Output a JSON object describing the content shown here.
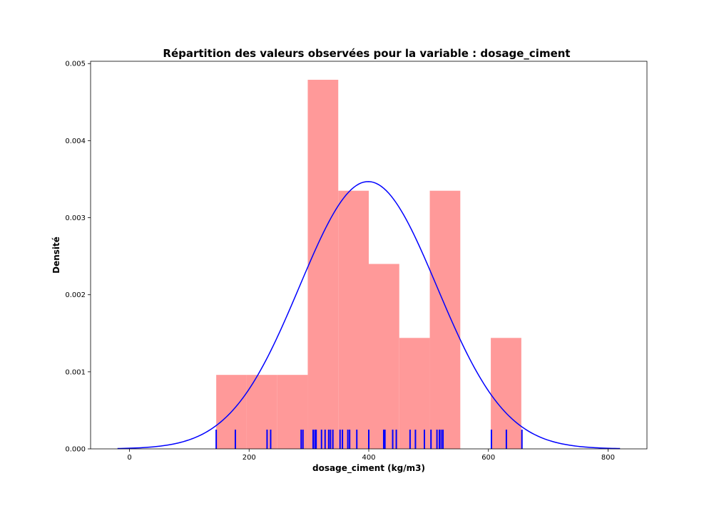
{
  "chart_data": {
    "type": "bar",
    "title": "Répartition des valeurs observées pour la variable : dosage_ciment",
    "xlabel": "dosage_ciment  (kg/m3)",
    "ylabel": "Densité",
    "xlim": [
      -65,
      865
    ],
    "ylim": [
      0,
      0.00503
    ],
    "x_ticks": [
      0,
      200,
      400,
      600,
      800
    ],
    "x_tick_labels": [
      "0",
      "200",
      "400",
      "600",
      "800"
    ],
    "y_ticks": [
      0,
      0.001,
      0.002,
      0.003,
      0.004,
      0.005
    ],
    "y_tick_labels": [
      "0.000",
      "0.001",
      "0.002",
      "0.003",
      "0.004",
      "0.005"
    ],
    "histogram": {
      "color": "#ff9999",
      "bins": [
        {
          "x0": 145,
          "x1": 196,
          "density": 0.00096
        },
        {
          "x0": 196,
          "x1": 247,
          "density": 0.00096
        },
        {
          "x0": 247,
          "x1": 298,
          "density": 0.00096
        },
        {
          "x0": 298,
          "x1": 349,
          "density": 0.00479
        },
        {
          "x0": 349,
          "x1": 400,
          "density": 0.00335
        },
        {
          "x0": 400,
          "x1": 451,
          "density": 0.0024
        },
        {
          "x0": 451,
          "x1": 502,
          "density": 0.00144
        },
        {
          "x0": 502,
          "x1": 553,
          "density": 0.00335
        },
        {
          "x0": 553,
          "x1": 604,
          "density": 0
        },
        {
          "x0": 604,
          "x1": 655,
          "density": 0.00144
        }
      ]
    },
    "density_curve": {
      "color": "#0000ff",
      "mean": 399,
      "std": 115,
      "x_range": [
        -20,
        820
      ]
    },
    "rug": {
      "color": "#0000ff",
      "height": 0.00025,
      "values": [
        145,
        177,
        230,
        236,
        287,
        290,
        307,
        310,
        312,
        321,
        327,
        333,
        336,
        340,
        352,
        356,
        365,
        368,
        380,
        400,
        425,
        427,
        440,
        446,
        469,
        478,
        493,
        504,
        514,
        518,
        521,
        524,
        605,
        630,
        656
      ]
    }
  }
}
